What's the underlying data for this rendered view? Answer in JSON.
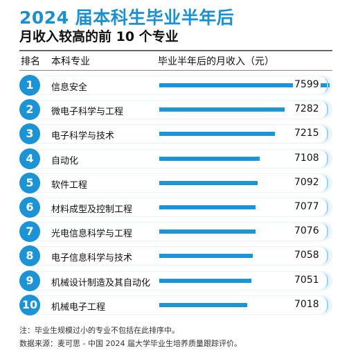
{
  "chart_data": {
    "type": "bar",
    "title": "2024 届本科生毕业半年后",
    "subtitle": "月收入较高的前 10 个专业",
    "columns": {
      "rank": "排名",
      "major": "本科专业",
      "salary": "毕业半年后的月收入（元）"
    },
    "ranks": [
      "1",
      "2",
      "3",
      "4",
      "5",
      "6",
      "7",
      "8",
      "9",
      "10"
    ],
    "categories": [
      "信息安全",
      "微电子科学与工程",
      "电子科学与技术",
      "自动化",
      "软件工程",
      "材料成型及控制工程",
      "光电信息科学与工程",
      "电子信息科学与技术",
      "机械设计制造及其自动化",
      "机械电子工程"
    ],
    "values": [
      7599,
      7282,
      7215,
      7108,
      7092,
      7077,
      7076,
      7058,
      7051,
      7018
    ],
    "colors": {
      "accent": "#1b93d4",
      "row_bg": "#e9f4fb"
    },
    "notes": [
      "注：毕业生规模过小的专业不包括在此排序中。",
      "数据来源：麦可思 - 中国 2024 届大学毕业生培养质量跟踪评价。"
    ]
  }
}
